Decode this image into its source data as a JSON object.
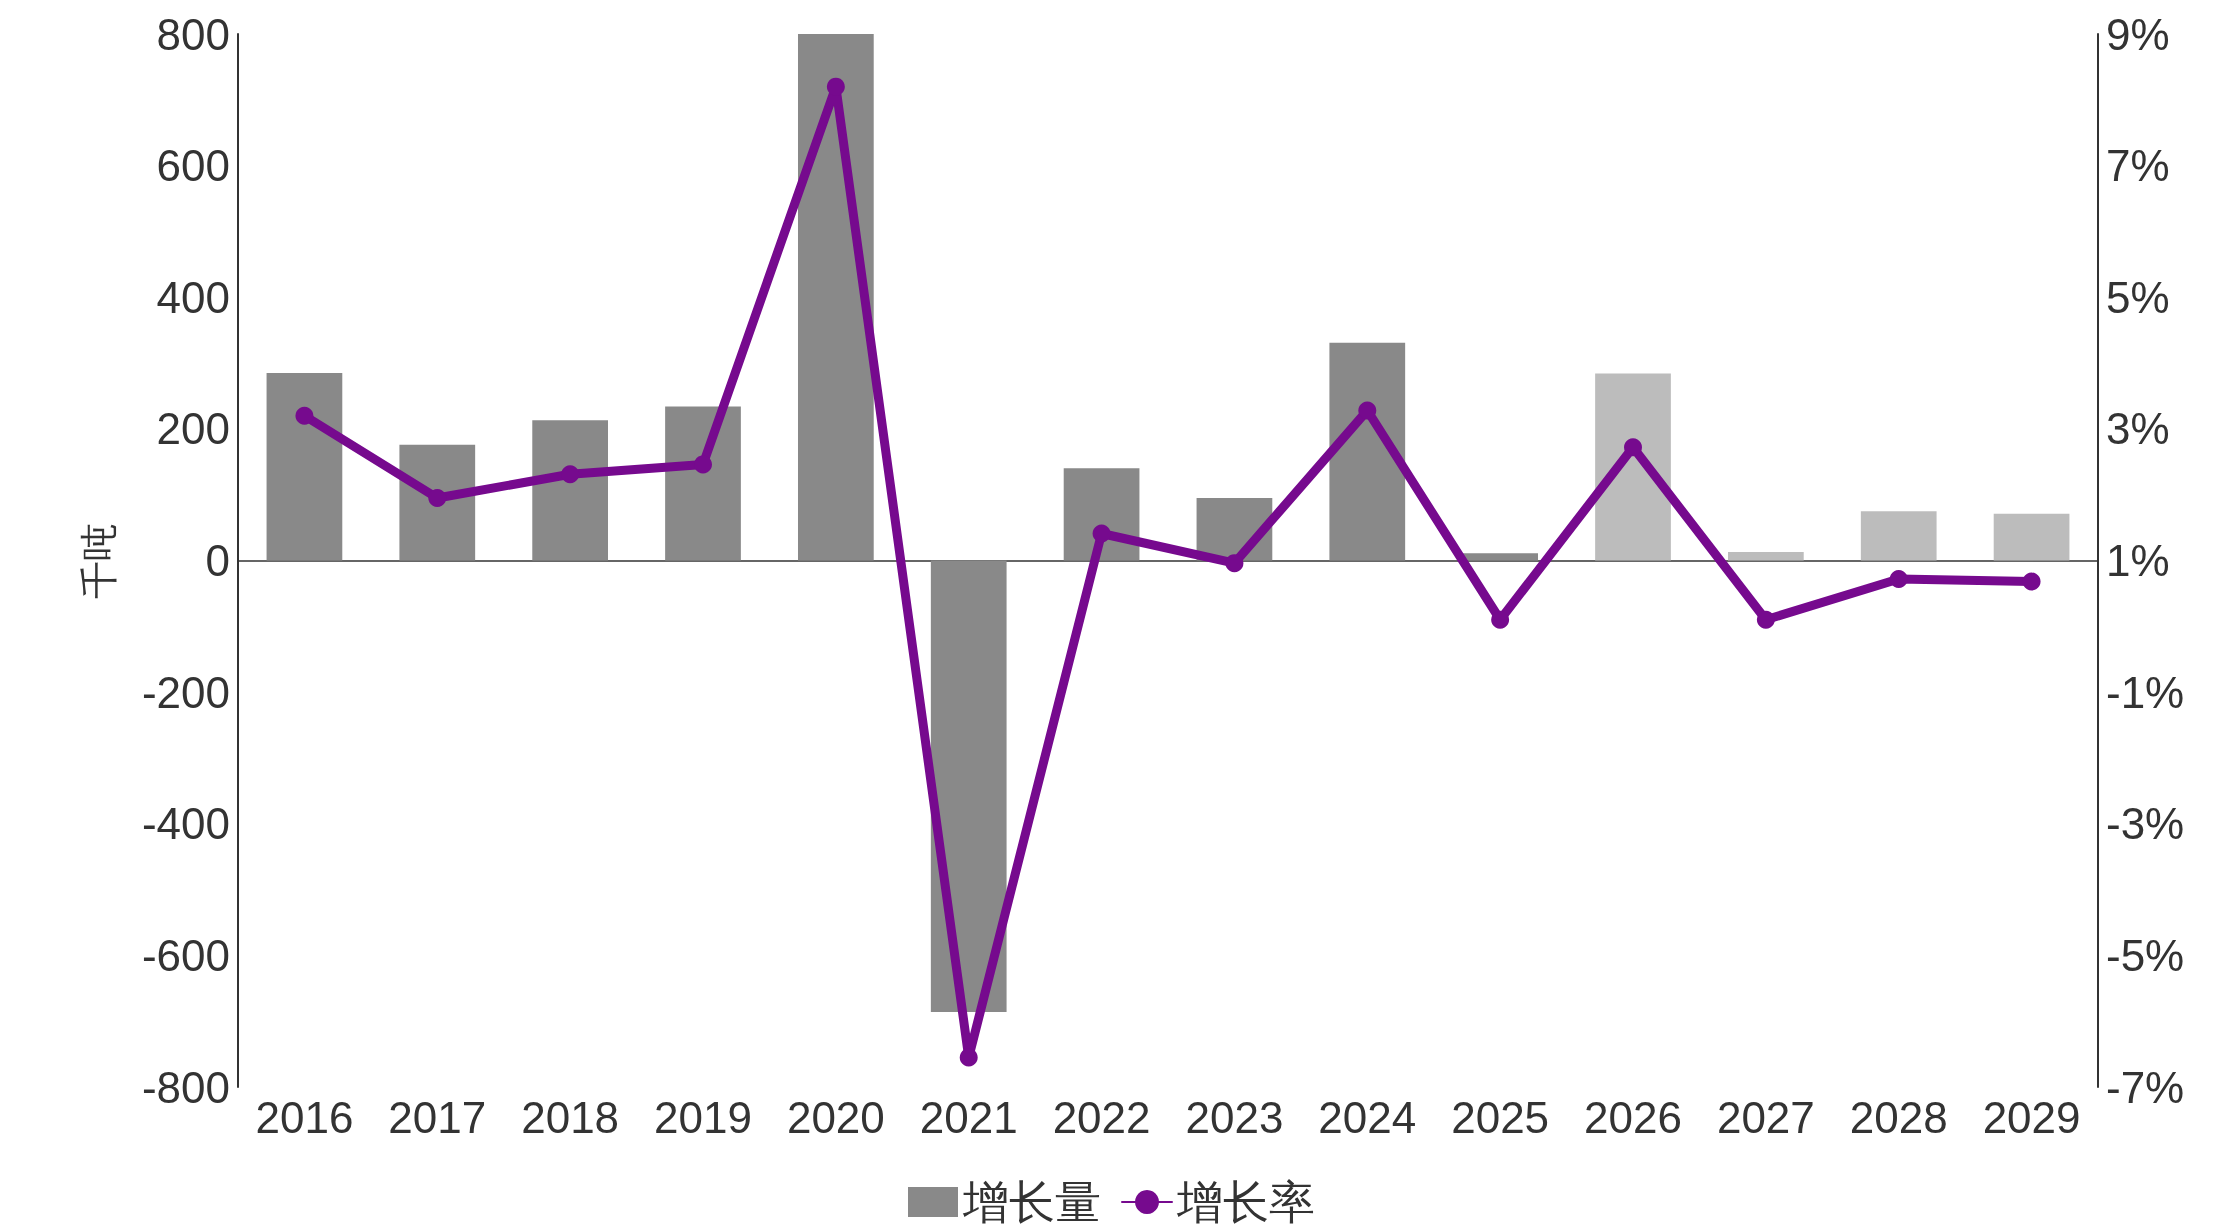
{
  "chart_data": {
    "type": "bar",
    "ylabel": "千吨",
    "categories": [
      "2016",
      "2017",
      "2018",
      "2019",
      "2020",
      "2021",
      "2022",
      "2023",
      "2024",
      "2025",
      "2026",
      "2027",
      "2028",
      "2029"
    ],
    "series": [
      {
        "name": "增长量",
        "colors": [
          "#898989",
          "#898989",
          "#898989",
          "#898989",
          "#898989",
          "#898989",
          "#898989",
          "#898989",
          "#898989",
          "#898989",
          "#bcbcbc",
          "#bcbcbc",
          "#bcbcbc",
          "#bcbcbc"
        ],
        "values": [
          285,
          176,
          213,
          234,
          800,
          -686,
          140,
          95,
          331,
          11,
          284,
          13,
          75,
          71
        ]
      },
      {
        "name": "增长率",
        "type": "line",
        "axis": "y2",
        "color": "#760a8e",
        "marker": "circle",
        "values": [
          3.2,
          1.95,
          2.31,
          2.46,
          8.2,
          -6.55,
          1.41,
          0.96,
          3.28,
          0.1,
          2.72,
          0.1,
          0.72,
          0.68
        ]
      }
    ],
    "ylim": [
      -800,
      800
    ],
    "yticks": [
      -800,
      -600,
      -400,
      -200,
      0,
      200,
      400,
      600,
      800
    ],
    "y2lim": [
      -7,
      9
    ],
    "y2ticks": [
      {
        "value": -7,
        "label": "-7%"
      },
      {
        "value": -5,
        "label": "-5%"
      },
      {
        "value": -3,
        "label": "-3%"
      },
      {
        "value": -1,
        "label": "-1%"
      },
      {
        "value": 1,
        "label": "1%"
      },
      {
        "value": 3,
        "label": "3%"
      },
      {
        "value": 5,
        "label": "5%"
      },
      {
        "value": 7,
        "label": "7%"
      },
      {
        "value": 9,
        "label": "9%"
      }
    ],
    "legend": "bottom"
  }
}
